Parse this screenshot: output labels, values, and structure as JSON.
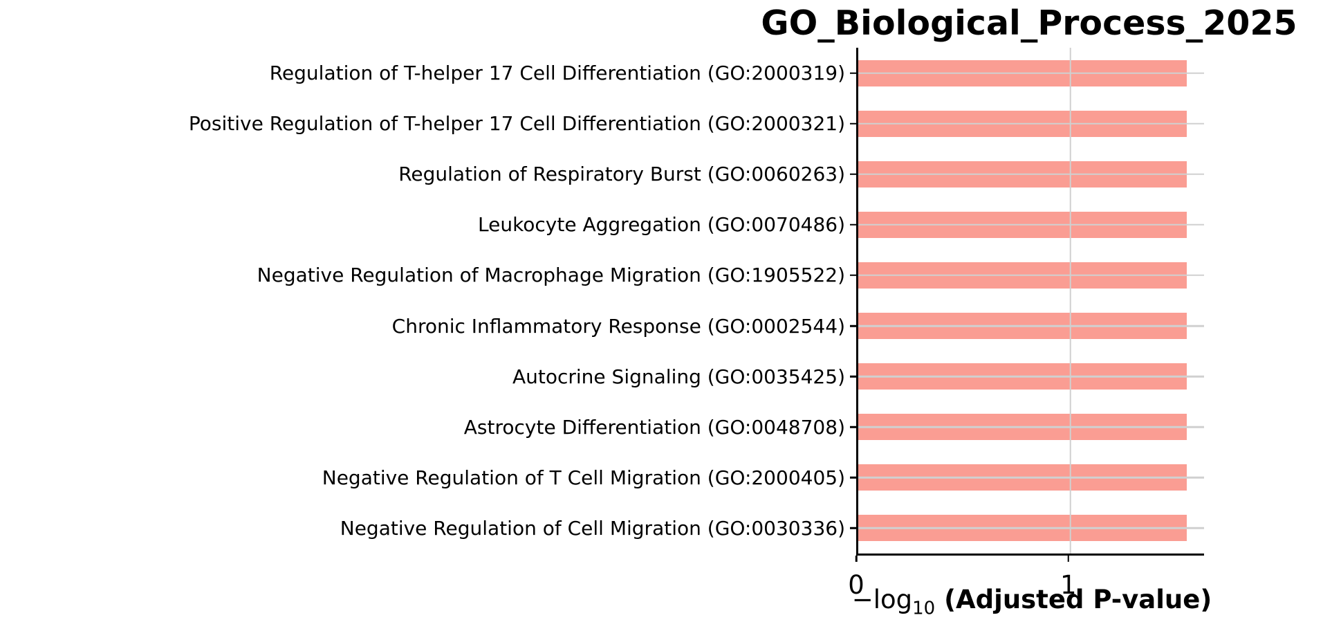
{
  "chart_data": {
    "type": "bar",
    "orientation": "horizontal",
    "title": "GO_Biological_Process_2025",
    "categories": [
      "Regulation of T-helper 17 Cell Differentiation (GO:2000319)",
      "Positive Regulation of T-helper 17 Cell Differentiation (GO:2000321)",
      "Regulation of Respiratory Burst (GO:0060263)",
      "Leukocyte Aggregation (GO:0070486)",
      "Negative Regulation of Macrophage Migration (GO:1905522)",
      "Chronic Inflammatory Response (GO:0002544)",
      "Autocrine Signaling (GO:0035425)",
      "Astrocyte Differentiation (GO:0048708)",
      "Negative Regulation of T Cell Migration (GO:2000405)",
      "Negative Regulation of Cell Migration (GO:0030336)"
    ],
    "values": [
      1.55,
      1.55,
      1.55,
      1.55,
      1.55,
      1.55,
      1.55,
      1.55,
      1.55,
      1.55
    ],
    "xlabel_prefix": "−log",
    "xlabel_sub": "10",
    "xlabel_bold": " (Adjusted P-value)",
    "x_tick_labels": [
      "0",
      "1"
    ],
    "x_tick_values": [
      0,
      1
    ],
    "xlim": [
      0,
      1.63
    ],
    "grid": true,
    "legend_position": "none",
    "colors": {
      "bar": "#fa9d93",
      "grid": "#d0d0d0",
      "axis": "#000000",
      "text": "#000000",
      "background": "#ffffff"
    }
  }
}
